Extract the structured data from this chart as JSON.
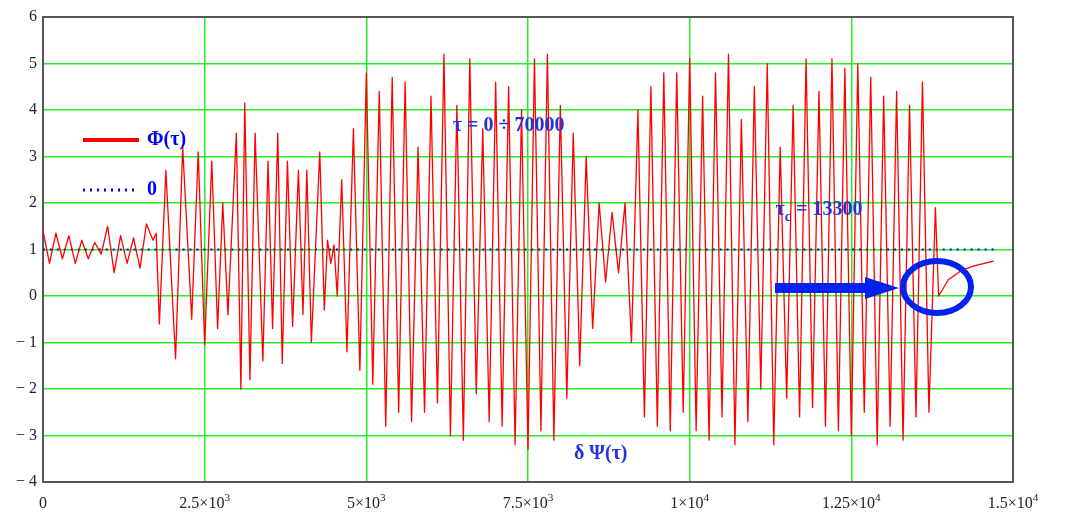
{
  "chart_data": {
    "type": "line",
    "marker": "none",
    "grid": true,
    "legend": "top left",
    "xlim": [
      0,
      15000
    ],
    "ylim": [
      -4,
      6
    ],
    "xticks": [
      0,
      {
        "value": 2500,
        "label": "2.5×10$^{3}$"
      },
      {
        "value": 5000,
        "label": "5×10$^{3}$"
      },
      {
        "value": 7500,
        "label": "7.5×10$^{3}$"
      },
      {
        "value": 10000,
        "label": "1×10$^{4}$"
      },
      {
        "value": 12500,
        "label": "1.25×10$^{4}$"
      },
      {
        "value": 15000,
        "label": "1.5×10$^{4}$"
      }
    ],
    "yticks": [
      {
        "value": -4,
        "label": "− 4"
      },
      {
        "value": -3,
        "label": "− 3"
      },
      {
        "value": -2,
        "label": "− 2"
      },
      {
        "value": -1,
        "label": "− 1"
      },
      0,
      1,
      2,
      3,
      4,
      5,
      6
    ],
    "annotations": [
      "τ = 0 ÷ 70000",
      {
        "text": "τ$_{c}$ = 13300",
        "x": 12000,
        "y": 1.85
      },
      "δ Ψ(τ)"
    ],
    "series": [
      {
        "name": "Φ(τ)",
        "color": "#ff0000",
        "line_style": "solid",
        "x": [
          0,
          100,
          200,
          300,
          400,
          500,
          600,
          700,
          800,
          900,
          1000,
          1100,
          1200,
          1300,
          1400,
          1500,
          1600,
          1700,
          1750,
          1800,
          1900,
          2050,
          2160,
          2300,
          2400,
          2500,
          2610,
          2700,
          2780,
          2860,
          2990,
          3060,
          3120,
          3200,
          3280,
          3400,
          3480,
          3550,
          3630,
          3700,
          3780,
          3860,
          3950,
          4020,
          4080,
          4150,
          4280,
          4350,
          4400,
          4450,
          4500,
          4550,
          4620,
          4700,
          4800,
          4900,
          5000,
          5100,
          5200,
          5300,
          5400,
          5500,
          5600,
          5700,
          5800,
          5900,
          6000,
          6100,
          6200,
          6300,
          6400,
          6500,
          6600,
          6700,
          6800,
          6900,
          7000,
          7100,
          7200,
          7300,
          7400,
          7500,
          7600,
          7700,
          7800,
          7900,
          8000,
          8100,
          8200,
          8300,
          8400,
          8500,
          8600,
          8700,
          8800,
          8900,
          9000,
          9100,
          9200,
          9300,
          9400,
          9500,
          9600,
          9700,
          9800,
          9900,
          10000,
          10100,
          10200,
          10300,
          10400,
          10500,
          10600,
          10700,
          10800,
          10900,
          11000,
          11100,
          11200,
          11300,
          11400,
          11500,
          11600,
          11700,
          11800,
          11900,
          12000,
          12100,
          12200,
          12300,
          12400,
          12500,
          12600,
          12700,
          12800,
          12900,
          13000,
          13100,
          13200,
          13300,
          13400,
          13500,
          13600,
          13700,
          13800,
          13850,
          14000,
          14200,
          14400,
          14700
        ],
        "values": [
          1.4,
          0.7,
          1.35,
          0.8,
          1.3,
          0.7,
          1.2,
          0.8,
          1.15,
          0.9,
          1.5,
          0.5,
          1.3,
          0.7,
          1.25,
          0.6,
          1.55,
          1.2,
          1.35,
          -0.6,
          2.7,
          -1.35,
          3.2,
          -0.5,
          3.1,
          -1.05,
          2.9,
          -0.7,
          2.0,
          -0.4,
          3.5,
          -2.0,
          4.15,
          -1.8,
          3.5,
          -1.4,
          2.9,
          -0.7,
          3.5,
          -1.45,
          2.9,
          -0.65,
          2.7,
          -0.4,
          2.7,
          -1.0,
          3.1,
          -0.3,
          1.2,
          0.7,
          1.1,
          0.0,
          2.5,
          -1.2,
          3.6,
          -1.6,
          4.8,
          -1.9,
          4.4,
          -2.8,
          4.7,
          -2.5,
          4.6,
          -2.7,
          3.2,
          -2.5,
          4.3,
          -2.3,
          5.2,
          -3.0,
          4.1,
          -3.1,
          5.1,
          -2.1,
          3.6,
          -2.7,
          4.6,
          -2.8,
          4.5,
          -3.2,
          4.0,
          -3.3,
          5.1,
          -2.9,
          5.2,
          -3.1,
          4.1,
          -2.2,
          3.5,
          -1.5,
          3.0,
          -0.7,
          2.0,
          0.3,
          1.8,
          0.5,
          2.0,
          -1.0,
          4.0,
          -2.6,
          4.5,
          -2.8,
          4.8,
          -2.9,
          4.8,
          -2.5,
          5.1,
          -2.9,
          4.3,
          -3.1,
          4.8,
          -2.6,
          5.2,
          -3.2,
          3.8,
          -2.7,
          4.5,
          -2.0,
          5.0,
          -3.2,
          3.2,
          -2.2,
          4.1,
          -2.6,
          5.1,
          -2.4,
          4.4,
          -2.8,
          5.1,
          -2.9,
          4.9,
          -3.0,
          5.0,
          -2.5,
          4.7,
          -3.2,
          4.3,
          -2.8,
          4.4,
          -3.1,
          4.1,
          -2.6,
          4.6,
          -2.5,
          1.9,
          0.0,
          0.35,
          0.55,
          0.65,
          0.75
        ]
      },
      {
        "name": "0",
        "color": "#0000ff",
        "line_style": "dotted",
        "x": [
          0,
          14700
        ],
        "values": [
          1,
          1
        ]
      }
    ]
  }
}
